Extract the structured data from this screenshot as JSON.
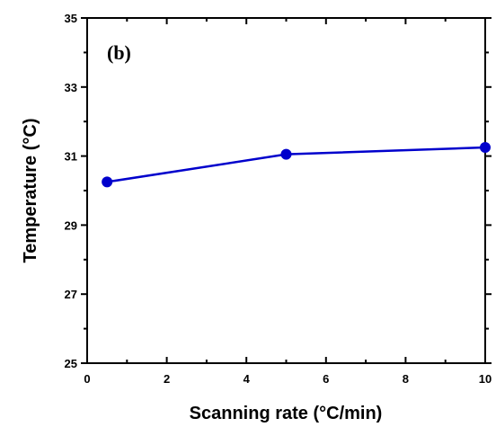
{
  "chart_data": {
    "type": "line",
    "panel_label": "(b)",
    "xlabel": "Scanning rate (°C/min)",
    "ylabel": "Temperature (°C)",
    "xlim": [
      0,
      10
    ],
    "ylim": [
      25,
      35
    ],
    "x_ticks": [
      "0",
      "2",
      "4",
      "6",
      "8",
      "10"
    ],
    "y_ticks": [
      "25",
      "27",
      "29",
      "31",
      "33",
      "35"
    ],
    "series": [
      {
        "x": [
          0.5,
          5,
          10
        ],
        "y": [
          30.25,
          31.05,
          31.25
        ],
        "color": "#0000cc"
      }
    ],
    "grid": false
  }
}
